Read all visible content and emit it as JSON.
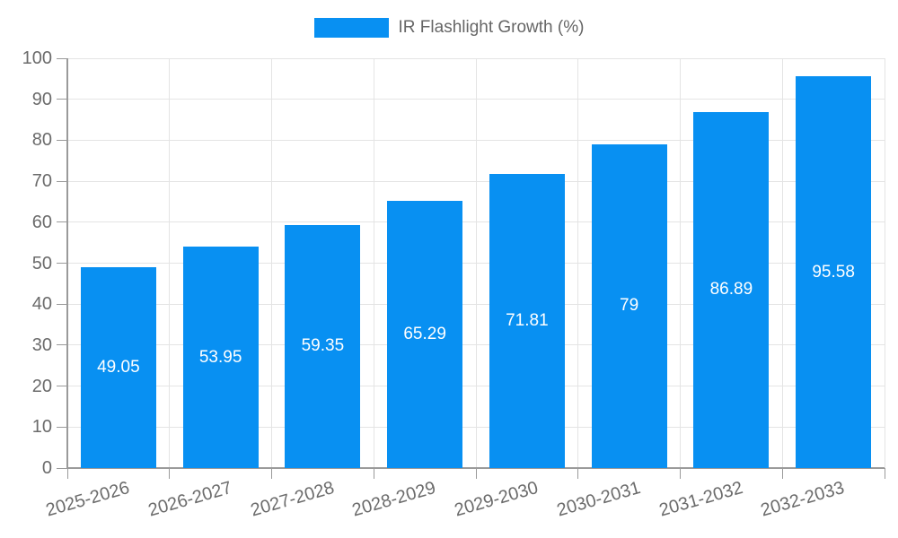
{
  "chart_data": {
    "type": "bar",
    "legend": "IR Flashlight Growth (%)",
    "categories": [
      "2025-2026",
      "2026-2027",
      "2027-2028",
      "2028-2029",
      "2029-2030",
      "2030-2031",
      "2031-2032",
      "2032-2033"
    ],
    "values": [
      49.05,
      53.95,
      59.35,
      65.29,
      71.81,
      79,
      86.89,
      95.58
    ],
    "ylim": [
      0,
      100
    ],
    "ytick_step": 10,
    "ytick_labels": [
      "0",
      "10",
      "20",
      "30",
      "40",
      "50",
      "60",
      "70",
      "80",
      "90",
      "100"
    ],
    "grid": true,
    "legend_position": "top",
    "value_label_position": "center-inside",
    "value_label_color": "#ffffff",
    "bar_color": "#0890f2",
    "grid_color": "#e4e4e4",
    "axis_color": "#9a9a9a",
    "tick_label_color": "#6b6b6b",
    "legend_text_color": "#666666",
    "background_color": "#ffffff"
  }
}
